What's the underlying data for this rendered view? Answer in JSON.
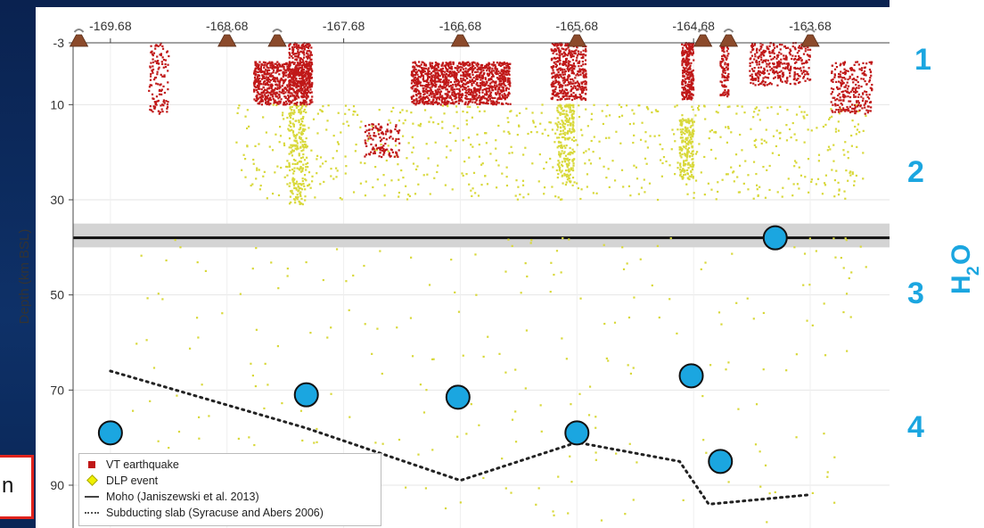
{
  "chart_data": {
    "type": "scatter",
    "title": "",
    "xlabel": "",
    "ylabel": "Depth (km BSL)",
    "x_ticks": [
      "-169.68",
      "-168.68",
      "-167.68",
      "-166.68",
      "-165.68",
      "-164.68",
      "-163.68"
    ],
    "x_tick_values": [
      -169.68,
      -168.68,
      -167.68,
      -166.68,
      -165.68,
      -164.68,
      -163.68
    ],
    "y_ticks": [
      "-3",
      "10",
      "30",
      "50",
      "70",
      "90"
    ],
    "y_tick_values": [
      -3,
      10,
      30,
      50,
      70,
      90
    ],
    "xlim": [
      -170.0,
      -163.0
    ],
    "ylim": [
      -3,
      99
    ],
    "y_inverted": true,
    "volcano_longitudes": [
      -169.95,
      -168.68,
      -168.25,
      -166.68,
      -165.68,
      -164.6,
      -164.38,
      -163.68
    ],
    "vt_clusters": [
      {
        "lon_min": -169.35,
        "lon_max": -169.18,
        "depth_min": -3,
        "depth_max": 12,
        "count": 120
      },
      {
        "lon_min": -168.45,
        "lon_max": -167.95,
        "depth_min": 1,
        "depth_max": 10,
        "count": 700
      },
      {
        "lon_min": -168.15,
        "lon_max": -167.95,
        "depth_min": -3,
        "depth_max": 6,
        "count": 250
      },
      {
        "lon_min": -167.1,
        "lon_max": -166.25,
        "depth_min": 1,
        "depth_max": 10,
        "count": 1200
      },
      {
        "lon_min": -165.9,
        "lon_max": -165.6,
        "depth_min": -3,
        "depth_max": 9,
        "count": 450
      },
      {
        "lon_min": -167.5,
        "lon_max": -167.2,
        "depth_min": 14,
        "depth_max": 21,
        "count": 120
      },
      {
        "lon_min": -164.78,
        "lon_max": -164.68,
        "depth_min": -3,
        "depth_max": 9,
        "count": 250
      },
      {
        "lon_min": -164.45,
        "lon_max": -164.38,
        "depth_min": -3,
        "depth_max": 9,
        "count": 100
      },
      {
        "lon_min": -164.2,
        "lon_max": -163.68,
        "depth_min": -3,
        "depth_max": 6,
        "count": 350
      },
      {
        "lon_min": -163.5,
        "lon_max": -163.15,
        "depth_min": 1,
        "depth_max": 12,
        "count": 250
      }
    ],
    "dlp_clusters": [
      {
        "lon_min": -168.15,
        "lon_max": -168.0,
        "depth_min": 10,
        "depth_max": 31,
        "count": 220
      },
      {
        "lon_min": -165.85,
        "lon_max": -165.7,
        "depth_min": 10,
        "depth_max": 27,
        "count": 220
      },
      {
        "lon_min": -164.8,
        "lon_max": -164.68,
        "depth_min": 13,
        "depth_max": 26,
        "count": 180
      },
      {
        "lon_min": -168.6,
        "lon_max": -163.2,
        "depth_min": 10,
        "depth_max": 30,
        "count": 700
      },
      {
        "lon_min": -169.5,
        "lon_max": -163.2,
        "depth_min": 38,
        "depth_max": 98,
        "count": 260
      }
    ],
    "moho": {
      "depth": 38,
      "uncertainty": [
        35,
        40
      ]
    },
    "slab": {
      "x": [
        -169.68,
        -168.0,
        -166.68,
        -165.68,
        -164.8,
        -164.55,
        -163.68
      ],
      "y": [
        66,
        78,
        89,
        81,
        85,
        94,
        92
      ]
    },
    "blue_markers": [
      {
        "x": -169.68,
        "y": 79
      },
      {
        "x": -168.0,
        "y": 71
      },
      {
        "x": -166.7,
        "y": 71.5
      },
      {
        "x": -165.68,
        "y": 79
      },
      {
        "x": -164.7,
        "y": 67
      },
      {
        "x": -164.45,
        "y": 85
      },
      {
        "x": -163.98,
        "y": 38
      }
    ],
    "legend": {
      "placement": "bottom-left",
      "entries": [
        {
          "label": "VT earthquake",
          "color": "#c01818",
          "marker": "square"
        },
        {
          "label": "DLP event",
          "color": "#e8e800",
          "marker": "diamond"
        },
        {
          "label": "Moho (Janiszewski et al. 2013)",
          "color": "#444444",
          "marker": "line"
        },
        {
          "label": "Subducting slab (Syracuse and Abers 2006)",
          "color": "#555555",
          "marker": "dotted"
        }
      ]
    }
  },
  "zones": [
    "1",
    "2",
    "3",
    "4"
  ],
  "annotation": {
    "h2o_main": "H",
    "h2o_sub": "2",
    "h2o_tail": "O"
  },
  "partial_label": "n",
  "colors": {
    "accent_blue": "#1ba6e0",
    "vt_red": "#c01818",
    "dlp_yellow": "#d8d83a",
    "slide_bg": "#0c2a5b",
    "red_box": "#e0231d"
  }
}
